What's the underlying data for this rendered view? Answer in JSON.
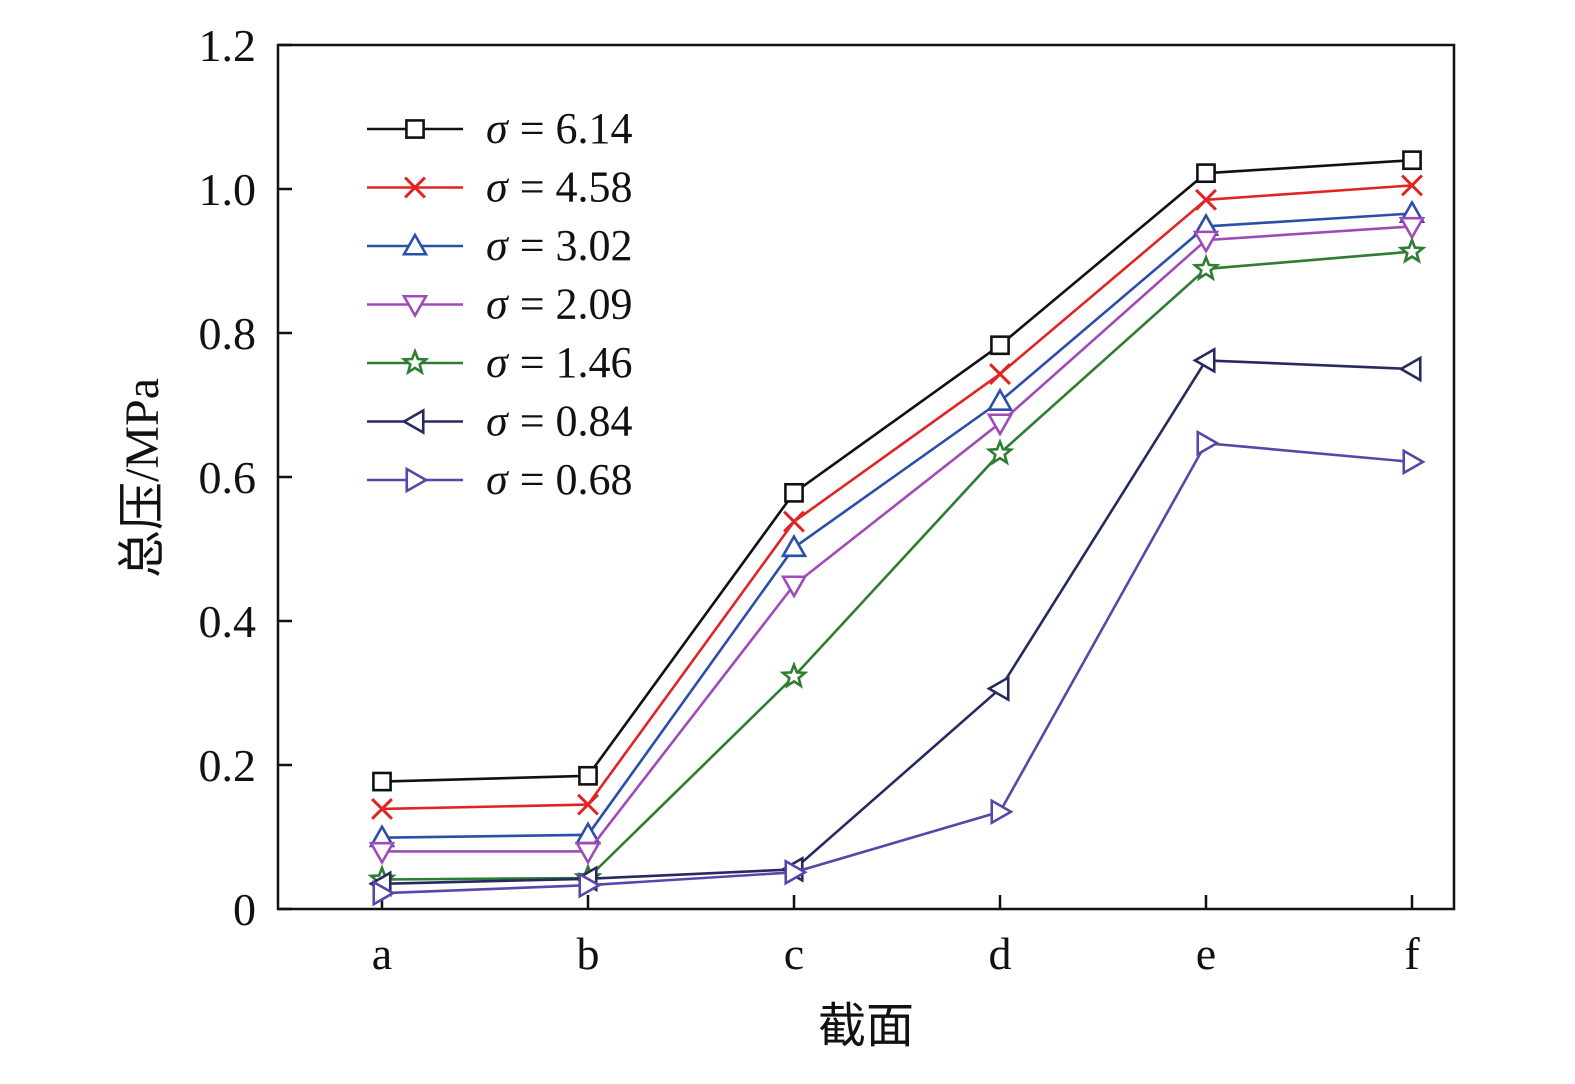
{
  "chart_data": {
    "type": "line",
    "title": "",
    "xlabel": "截面",
    "ylabel": "总压/MPa",
    "categories": [
      "a",
      "b",
      "c",
      "d",
      "e",
      "f"
    ],
    "ylim": [
      0,
      1.2
    ],
    "yticks": [
      {
        "value": 0,
        "label": "0"
      },
      {
        "value": 0.2,
        "label": "0.2"
      },
      {
        "value": 0.4,
        "label": "0.4"
      },
      {
        "value": 0.6,
        "label": "0.6"
      },
      {
        "value": 0.8,
        "label": "0.8"
      },
      {
        "value": 1.0,
        "label": "1.0"
      },
      {
        "value": 1.2,
        "label": "1.2"
      }
    ],
    "grid": false,
    "legend_position": "top-left",
    "series": [
      {
        "name": "σ = 6.14",
        "symbol": "σ",
        "value_text": "= 6.14",
        "color": "#111111",
        "marker": "square",
        "values": [
          0.177,
          0.185,
          0.578,
          0.783,
          1.022,
          1.04
        ]
      },
      {
        "name": "σ = 4.58",
        "symbol": "σ",
        "value_text": "= 4.58",
        "color": "#e02424",
        "marker": "x",
        "values": [
          0.139,
          0.145,
          0.538,
          0.743,
          0.985,
          1.005
        ]
      },
      {
        "name": "σ = 3.02",
        "symbol": "σ",
        "value_text": "= 3.02",
        "color": "#2b4ea8",
        "marker": "triangle-up",
        "values": [
          0.099,
          0.103,
          0.502,
          0.705,
          0.948,
          0.966
        ]
      },
      {
        "name": "σ = 2.09",
        "symbol": "σ",
        "value_text": "= 2.09",
        "color": "#a04ab8",
        "marker": "triangle-down",
        "values": [
          0.08,
          0.08,
          0.45,
          0.675,
          0.929,
          0.948
        ]
      },
      {
        "name": "σ = 1.46",
        "symbol": "σ",
        "value_text": "= 1.46",
        "color": "#2e7d32",
        "marker": "star",
        "values": [
          0.041,
          0.043,
          0.323,
          0.633,
          0.889,
          0.913
        ]
      },
      {
        "name": "σ = 0.84",
        "symbol": "σ",
        "value_text": "= 0.84",
        "color": "#262a5e",
        "marker": "triangle-left",
        "values": [
          0.035,
          0.042,
          0.055,
          0.306,
          0.762,
          0.75
        ]
      },
      {
        "name": "σ = 0.68",
        "symbol": "σ",
        "value_text": "= 0.68",
        "color": "#5846a8",
        "marker": "triangle-right",
        "values": [
          0.022,
          0.033,
          0.051,
          0.135,
          0.647,
          0.621
        ]
      }
    ]
  }
}
